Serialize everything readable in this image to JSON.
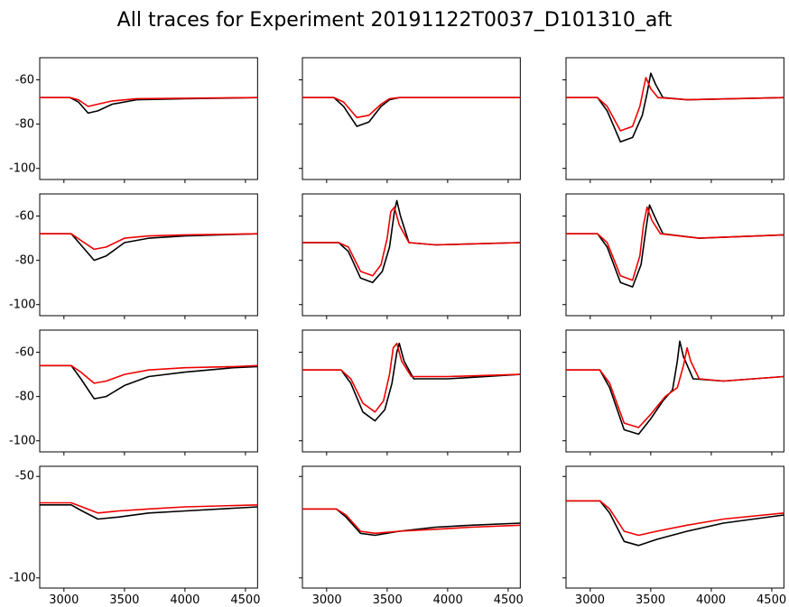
{
  "title": "All traces for Experiment 20191122T0037_D101310_aft",
  "title_fontsize": 22,
  "background_color": "#ffffff",
  "axis_color": "#000000",
  "series_colors": {
    "trace_a": "#000000",
    "trace_b": "#ee0000"
  },
  "line_width": 1.6,
  "layout": {
    "rows": 4,
    "cols": 3
  },
  "x_axis": {
    "lim": [
      2800,
      4600
    ],
    "ticks": [
      3000,
      3500,
      4000,
      4500
    ]
  },
  "panels": [
    {
      "row": 0,
      "col": 0,
      "ylim": [
        -105,
        -50
      ],
      "yticks": [
        -60,
        -80,
        -100
      ],
      "trace_a": [
        [
          2800,
          -68
        ],
        [
          3050,
          -68
        ],
        [
          3120,
          -70
        ],
        [
          3200,
          -75
        ],
        [
          3280,
          -74
        ],
        [
          3400,
          -71
        ],
        [
          3600,
          -69
        ],
        [
          4000,
          -68.5
        ],
        [
          4600,
          -68
        ]
      ],
      "trace_b": [
        [
          2800,
          -68
        ],
        [
          3050,
          -68
        ],
        [
          3120,
          -69
        ],
        [
          3200,
          -72
        ],
        [
          3280,
          -71
        ],
        [
          3400,
          -69.5
        ],
        [
          3600,
          -68.5
        ],
        [
          4000,
          -68.3
        ],
        [
          4600,
          -68
        ]
      ]
    },
    {
      "row": 0,
      "col": 1,
      "ylim": [
        -105,
        -50
      ],
      "yticks": [
        -60,
        -80,
        -100
      ],
      "trace_a": [
        [
          2800,
          -68
        ],
        [
          3060,
          -68
        ],
        [
          3140,
          -72
        ],
        [
          3250,
          -81
        ],
        [
          3350,
          -79
        ],
        [
          3450,
          -72
        ],
        [
          3520,
          -69
        ],
        [
          3600,
          -68
        ],
        [
          4000,
          -68
        ],
        [
          4600,
          -68
        ]
      ],
      "trace_b": [
        [
          2800,
          -68
        ],
        [
          3060,
          -68
        ],
        [
          3140,
          -70
        ],
        [
          3250,
          -77
        ],
        [
          3350,
          -76
        ],
        [
          3450,
          -71
        ],
        [
          3520,
          -68.5
        ],
        [
          3600,
          -68
        ],
        [
          4000,
          -68
        ],
        [
          4600,
          -68
        ]
      ]
    },
    {
      "row": 0,
      "col": 2,
      "ylim": [
        -105,
        -50
      ],
      "yticks": [
        -60,
        -80,
        -100
      ],
      "trace_a": [
        [
          2800,
          -68
        ],
        [
          3060,
          -68
        ],
        [
          3140,
          -74
        ],
        [
          3250,
          -88
        ],
        [
          3350,
          -86
        ],
        [
          3430,
          -76
        ],
        [
          3470,
          -66
        ],
        [
          3500,
          -57
        ],
        [
          3540,
          -62
        ],
        [
          3600,
          -68
        ],
        [
          3800,
          -69
        ],
        [
          4600,
          -68
        ]
      ],
      "trace_b": [
        [
          2800,
          -68
        ],
        [
          3060,
          -68
        ],
        [
          3140,
          -72
        ],
        [
          3250,
          -83
        ],
        [
          3350,
          -81
        ],
        [
          3410,
          -72
        ],
        [
          3440,
          -64
        ],
        [
          3460,
          -59
        ],
        [
          3500,
          -64
        ],
        [
          3560,
          -68
        ],
        [
          3800,
          -69
        ],
        [
          4600,
          -68
        ]
      ]
    },
    {
      "row": 1,
      "col": 0,
      "ylim": [
        -105,
        -50
      ],
      "yticks": [
        -60,
        -80,
        -100
      ],
      "trace_a": [
        [
          2800,
          -68
        ],
        [
          3060,
          -68
        ],
        [
          3140,
          -73
        ],
        [
          3250,
          -80
        ],
        [
          3350,
          -78
        ],
        [
          3500,
          -72
        ],
        [
          3700,
          -70
        ],
        [
          4000,
          -69
        ],
        [
          4600,
          -68
        ]
      ],
      "trace_b": [
        [
          2800,
          -68
        ],
        [
          3060,
          -68
        ],
        [
          3140,
          -71
        ],
        [
          3250,
          -75
        ],
        [
          3350,
          -74
        ],
        [
          3500,
          -70
        ],
        [
          3700,
          -69
        ],
        [
          4000,
          -68.5
        ],
        [
          4600,
          -68
        ]
      ]
    },
    {
      "row": 1,
      "col": 1,
      "ylim": [
        -105,
        -50
      ],
      "yticks": [
        -60,
        -80,
        -100
      ],
      "trace_a": [
        [
          2800,
          -72
        ],
        [
          3100,
          -72
        ],
        [
          3180,
          -76
        ],
        [
          3280,
          -88
        ],
        [
          3380,
          -90
        ],
        [
          3460,
          -85
        ],
        [
          3520,
          -74
        ],
        [
          3560,
          -58
        ],
        [
          3580,
          -53
        ],
        [
          3610,
          -60
        ],
        [
          3680,
          -72
        ],
        [
          3900,
          -73
        ],
        [
          4600,
          -72
        ]
      ],
      "trace_b": [
        [
          2800,
          -72
        ],
        [
          3100,
          -72
        ],
        [
          3180,
          -74
        ],
        [
          3280,
          -85
        ],
        [
          3380,
          -87
        ],
        [
          3450,
          -82
        ],
        [
          3500,
          -70
        ],
        [
          3530,
          -58
        ],
        [
          3560,
          -56
        ],
        [
          3600,
          -64
        ],
        [
          3680,
          -72
        ],
        [
          3900,
          -73
        ],
        [
          4600,
          -72
        ]
      ]
    },
    {
      "row": 1,
      "col": 2,
      "ylim": [
        -105,
        -50
      ],
      "yticks": [
        -60,
        -80,
        -100
      ],
      "trace_a": [
        [
          2800,
          -68
        ],
        [
          3060,
          -68
        ],
        [
          3140,
          -74
        ],
        [
          3250,
          -90
        ],
        [
          3350,
          -92
        ],
        [
          3420,
          -82
        ],
        [
          3460,
          -66
        ],
        [
          3490,
          -55
        ],
        [
          3530,
          -60
        ],
        [
          3600,
          -68
        ],
        [
          3900,
          -70
        ],
        [
          4600,
          -68.5
        ]
      ],
      "trace_b": [
        [
          2800,
          -68
        ],
        [
          3060,
          -68
        ],
        [
          3140,
          -72
        ],
        [
          3250,
          -87
        ],
        [
          3350,
          -89
        ],
        [
          3410,
          -78
        ],
        [
          3440,
          -64
        ],
        [
          3470,
          -56
        ],
        [
          3510,
          -62
        ],
        [
          3580,
          -68
        ],
        [
          3900,
          -70
        ],
        [
          4600,
          -68.5
        ]
      ]
    },
    {
      "row": 2,
      "col": 0,
      "ylim": [
        -105,
        -50
      ],
      "yticks": [
        -60,
        -80,
        -100
      ],
      "trace_a": [
        [
          2800,
          -66
        ],
        [
          3060,
          -66
        ],
        [
          3140,
          -72
        ],
        [
          3250,
          -81
        ],
        [
          3350,
          -80
        ],
        [
          3500,
          -75
        ],
        [
          3700,
          -71
        ],
        [
          4000,
          -69
        ],
        [
          4400,
          -67
        ],
        [
          4600,
          -66.5
        ]
      ],
      "trace_b": [
        [
          2800,
          -66
        ],
        [
          3060,
          -66
        ],
        [
          3140,
          -69
        ],
        [
          3250,
          -74
        ],
        [
          3350,
          -73
        ],
        [
          3500,
          -70
        ],
        [
          3700,
          -68
        ],
        [
          4000,
          -67
        ],
        [
          4400,
          -66.5
        ],
        [
          4600,
          -66
        ]
      ]
    },
    {
      "row": 2,
      "col": 1,
      "ylim": [
        -105,
        -50
      ],
      "yticks": [
        -60,
        -80,
        -100
      ],
      "trace_a": [
        [
          2800,
          -68
        ],
        [
          3120,
          -68
        ],
        [
          3200,
          -74
        ],
        [
          3300,
          -87
        ],
        [
          3400,
          -91
        ],
        [
          3480,
          -86
        ],
        [
          3540,
          -74
        ],
        [
          3580,
          -60
        ],
        [
          3600,
          -56
        ],
        [
          3640,
          -64
        ],
        [
          3720,
          -72
        ],
        [
          4000,
          -72
        ],
        [
          4600,
          -70
        ]
      ],
      "trace_b": [
        [
          2800,
          -68
        ],
        [
          3120,
          -68
        ],
        [
          3200,
          -72
        ],
        [
          3300,
          -83
        ],
        [
          3400,
          -87
        ],
        [
          3470,
          -82
        ],
        [
          3520,
          -70
        ],
        [
          3550,
          -58
        ],
        [
          3580,
          -56
        ],
        [
          3620,
          -64
        ],
        [
          3700,
          -71
        ],
        [
          4000,
          -71
        ],
        [
          4600,
          -70
        ]
      ]
    },
    {
      "row": 2,
      "col": 2,
      "ylim": [
        -105,
        -50
      ],
      "yticks": [
        -60,
        -80,
        -100
      ],
      "trace_a": [
        [
          2800,
          -68
        ],
        [
          3080,
          -68
        ],
        [
          3160,
          -76
        ],
        [
          3280,
          -95
        ],
        [
          3400,
          -97
        ],
        [
          3500,
          -90
        ],
        [
          3600,
          -82
        ],
        [
          3680,
          -77
        ],
        [
          3720,
          -64
        ],
        [
          3740,
          -55
        ],
        [
          3770,
          -62
        ],
        [
          3850,
          -72
        ],
        [
          4100,
          -73
        ],
        [
          4600,
          -71
        ]
      ],
      "trace_b": [
        [
          2800,
          -68
        ],
        [
          3080,
          -68
        ],
        [
          3160,
          -74
        ],
        [
          3280,
          -92
        ],
        [
          3400,
          -94
        ],
        [
          3500,
          -88
        ],
        [
          3620,
          -80
        ],
        [
          3720,
          -76
        ],
        [
          3770,
          -66
        ],
        [
          3800,
          -58
        ],
        [
          3830,
          -64
        ],
        [
          3900,
          -72
        ],
        [
          4100,
          -73
        ],
        [
          4600,
          -71
        ]
      ]
    },
    {
      "row": 3,
      "col": 0,
      "ylim": [
        -105,
        -45
      ],
      "yticks": [
        -50,
        -100
      ],
      "trace_a": [
        [
          2800,
          -64
        ],
        [
          3060,
          -64
        ],
        [
          3150,
          -67
        ],
        [
          3280,
          -71
        ],
        [
          3450,
          -70
        ],
        [
          3700,
          -68
        ],
        [
          4000,
          -67
        ],
        [
          4600,
          -65
        ]
      ],
      "trace_b": [
        [
          2800,
          -63
        ],
        [
          3060,
          -63
        ],
        [
          3150,
          -65
        ],
        [
          3280,
          -68
        ],
        [
          3450,
          -67
        ],
        [
          3700,
          -66
        ],
        [
          4000,
          -65
        ],
        [
          4600,
          -64
        ]
      ]
    },
    {
      "row": 3,
      "col": 1,
      "ylim": [
        -105,
        -45
      ],
      "yticks": [
        -50,
        -100
      ],
      "trace_a": [
        [
          2800,
          -66
        ],
        [
          3080,
          -66
        ],
        [
          3160,
          -70
        ],
        [
          3280,
          -78
        ],
        [
          3400,
          -79
        ],
        [
          3600,
          -77
        ],
        [
          3900,
          -75
        ],
        [
          4200,
          -74
        ],
        [
          4600,
          -73
        ]
      ],
      "trace_b": [
        [
          2800,
          -66
        ],
        [
          3080,
          -66
        ],
        [
          3160,
          -69
        ],
        [
          3280,
          -77
        ],
        [
          3400,
          -78
        ],
        [
          3600,
          -77
        ],
        [
          3900,
          -76
        ],
        [
          4200,
          -75
        ],
        [
          4600,
          -74
        ]
      ]
    },
    {
      "row": 3,
      "col": 2,
      "ylim": [
        -105,
        -45
      ],
      "yticks": [
        -50,
        -100
      ],
      "trace_a": [
        [
          2800,
          -62
        ],
        [
          3080,
          -62
        ],
        [
          3160,
          -68
        ],
        [
          3280,
          -82
        ],
        [
          3400,
          -84
        ],
        [
          3550,
          -81
        ],
        [
          3800,
          -77
        ],
        [
          4100,
          -73
        ],
        [
          4600,
          -69
        ]
      ],
      "trace_b": [
        [
          2800,
          -62
        ],
        [
          3080,
          -62
        ],
        [
          3160,
          -66
        ],
        [
          3280,
          -77
        ],
        [
          3400,
          -79
        ],
        [
          3550,
          -77
        ],
        [
          3800,
          -74
        ],
        [
          4100,
          -71
        ],
        [
          4600,
          -68
        ]
      ]
    }
  ]
}
